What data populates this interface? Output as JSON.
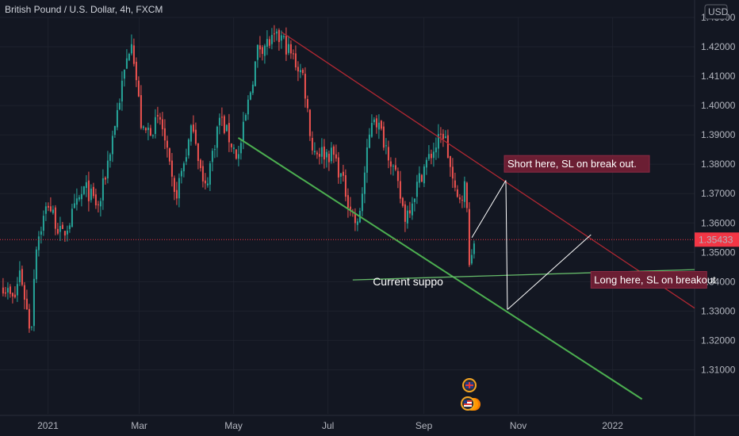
{
  "header": {
    "symbol_title": "British Pound / U.S. Dollar, 4h, FXCM",
    "currency_button": "USD"
  },
  "colors": {
    "background": "#131722",
    "grid": "#1e222d",
    "up_candle": "#26a69a",
    "down_candle": "#ef5350",
    "resistance_line": "#b22833",
    "support_line": "#4caf50",
    "flat_support": "#66bb6a",
    "projection": "#ffffff",
    "annotation_bg": "#6b1e33",
    "price_badge": "#f23645"
  },
  "chart_data": {
    "type": "candlestick",
    "title": "British Pound / U.S. Dollar, 4h, FXCM",
    "ylim": [
      1.295,
      1.43
    ],
    "x_range": [
      "2020-12-01",
      "2022-02-23"
    ],
    "x_ticks": [
      {
        "date": "2021-01-01",
        "label": "2021"
      },
      {
        "date": "2021-03-01",
        "label": "Mar"
      },
      {
        "date": "2021-05-01",
        "label": "May"
      },
      {
        "date": "2021-07-01",
        "label": "Jul"
      },
      {
        "date": "2021-09-01",
        "label": "Sep"
      },
      {
        "date": "2021-11-01",
        "label": "Nov"
      },
      {
        "date": "2022-01-01",
        "label": "2022"
      }
    ],
    "y_ticks": [
      "1.43000",
      "1.42000",
      "1.41000",
      "1.40000",
      "1.39000",
      "1.38000",
      "1.37000",
      "1.36000",
      "1.35000",
      "1.34000",
      "1.33000",
      "1.32000",
      "1.31000"
    ],
    "current_price": 1.35433,
    "current_price_label": "1.35433",
    "price_path": [
      {
        "date": "2020-12-03",
        "price": 1.339
      },
      {
        "date": "2020-12-10",
        "price": 1.333
      },
      {
        "date": "2020-12-14",
        "price": 1.344
      },
      {
        "date": "2020-12-21",
        "price": 1.322
      },
      {
        "date": "2020-12-24",
        "price": 1.352
      },
      {
        "date": "2021-01-01",
        "price": 1.367
      },
      {
        "date": "2021-01-10",
        "price": 1.355
      },
      {
        "date": "2021-01-25",
        "price": 1.372
      },
      {
        "date": "2021-02-03",
        "price": 1.365
      },
      {
        "date": "2021-02-24",
        "price": 1.424
      },
      {
        "date": "2021-03-03",
        "price": 1.39
      },
      {
        "date": "2021-03-15",
        "price": 1.395
      },
      {
        "date": "2021-03-24",
        "price": 1.368
      },
      {
        "date": "2021-04-05",
        "price": 1.394
      },
      {
        "date": "2021-04-12",
        "price": 1.37
      },
      {
        "date": "2021-04-22",
        "price": 1.396
      },
      {
        "date": "2021-05-04",
        "price": 1.382
      },
      {
        "date": "2021-05-17",
        "price": 1.42
      },
      {
        "date": "2021-06-01",
        "price": 1.423
      },
      {
        "date": "2021-06-15",
        "price": 1.41
      },
      {
        "date": "2021-06-21",
        "price": 1.385
      },
      {
        "date": "2021-07-05",
        "price": 1.383
      },
      {
        "date": "2021-07-20",
        "price": 1.358
      },
      {
        "date": "2021-07-30",
        "price": 1.398
      },
      {
        "date": "2021-08-10",
        "price": 1.383
      },
      {
        "date": "2021-08-20",
        "price": 1.362
      },
      {
        "date": "2021-09-01",
        "price": 1.379
      },
      {
        "date": "2021-09-14",
        "price": 1.391
      },
      {
        "date": "2021-09-22",
        "price": 1.367
      },
      {
        "date": "2021-09-28",
        "price": 1.373
      },
      {
        "date": "2021-10-01",
        "price": 1.342
      },
      {
        "date": "2021-10-04",
        "price": 1.356
      }
    ],
    "trendlines": [
      {
        "name": "resistance",
        "from": {
          "date": "2021-06-01",
          "price": 1.425
        },
        "to": {
          "date": "2022-02-23",
          "price": 1.331
        }
      },
      {
        "name": "support",
        "from": {
          "date": "2021-05-04",
          "price": 1.389
        },
        "to": {
          "date": "2022-01-20",
          "price": 1.3
        }
      },
      {
        "name": "horizontal-support",
        "from": {
          "date": "2021-07-17",
          "price": 1.3406
        },
        "to": {
          "date": "2022-02-23",
          "price": 1.3441
        }
      }
    ],
    "projections": [
      {
        "name": "path-up",
        "from": {
          "date": "2021-10-02",
          "price": 1.355
        },
        "to": {
          "date": "2021-10-24",
          "price": 1.3745
        }
      },
      {
        "name": "path-down",
        "from": {
          "date": "2021-10-24",
          "price": 1.3745
        },
        "to": {
          "date": "2021-10-25",
          "price": 1.3305
        }
      },
      {
        "name": "path-breakout",
        "from": {
          "date": "2021-10-25",
          "price": 1.3305
        },
        "to": {
          "date": "2021-12-18",
          "price": 1.356
        }
      }
    ],
    "annotations": [
      {
        "text": "Short here, SL on break out.",
        "date": "2021-10-23",
        "price": 1.38
      },
      {
        "text": "Long here, SL on breakout",
        "date": "2021-12-18",
        "price": 1.3405
      }
    ],
    "labels": [
      {
        "text": "Current suppo",
        "date": "2021-07-30",
        "price": 1.3387
      }
    ],
    "event_icons": [
      "uk-flag-icon",
      "us-flag-icon"
    ]
  }
}
